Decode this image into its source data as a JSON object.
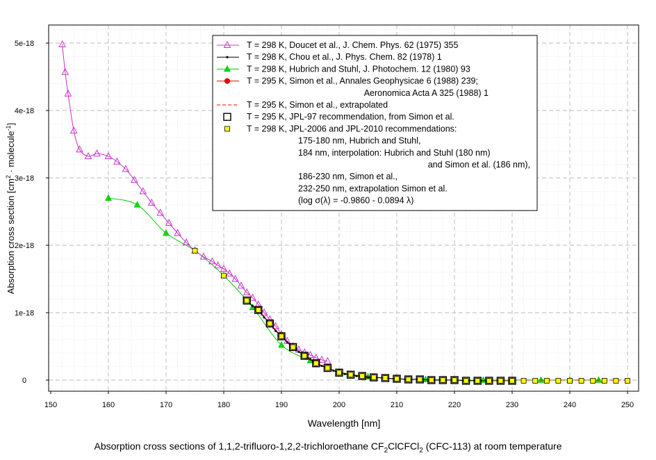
{
  "chart_data": {
    "type": "scatter",
    "title": "",
    "xlabel": "Wavelength [nm]",
    "ylabel_parts": [
      "Absorption cross section [cm",
      "2",
      " · molecule",
      "-1",
      "]"
    ],
    "xlim": [
      150,
      250
    ],
    "ylim": [
      -0.2,
      5.2
    ],
    "y_scale_label": "units of 1e-18",
    "x_ticks": [
      150,
      160,
      170,
      180,
      190,
      200,
      210,
      220,
      230,
      240,
      250
    ],
    "y_ticks": [
      0,
      1,
      2,
      3,
      4,
      5
    ],
    "y_tick_labels": [
      "0",
      "1e-18",
      "2e-18",
      "3e-18",
      "4e-18",
      "5e-18"
    ],
    "grid": true,
    "legend_position": "top-right",
    "legend_lines": [
      {
        "marker": "triangle-open",
        "color": "#cc33cc",
        "text": "T = 298 K, Doucet et al., J. Chem. Phys. 62 (1975) 355"
      },
      {
        "marker": "dot",
        "color": "#000000",
        "text": "T = 298 K, Chou et al., J. Phys. Chem. 82 (1978) 1"
      },
      {
        "marker": "triangle-filled",
        "color": "#00dd00",
        "text": "T = 298 K, Hubrich and Stuhl, J. Photochem. 12 (1980) 93"
      },
      {
        "marker": "circle-red",
        "color": "#ff0000",
        "text": "T = 295 K, Simon et al., Annales Geophysicae 6 (1988) 239;"
      },
      {
        "marker": "none",
        "color": "",
        "text": "Aeronomica Acta A 325 (1988) 1",
        "indent": "far"
      },
      {
        "marker": "dashed",
        "color": "#ff0000",
        "text": "T = 295 K, Simon et al., extrapolated"
      },
      {
        "marker": "square-open",
        "color": "#000000",
        "text": "T = 295 K, JPL-97 recommendation, from Simon et al."
      },
      {
        "marker": "square-yellow",
        "color": "#ffff00",
        "text": "T = 298 K, JPL-2006 and JPL-2010 recommendations:"
      },
      {
        "marker": "none",
        "color": "",
        "text": "175-180 nm, Hubrich and Stuhl,",
        "indent": "mid"
      },
      {
        "marker": "none",
        "color": "",
        "text": "184 nm, interpolation: Hubrich and Stuhl (180 nm)",
        "indent": "mid"
      },
      {
        "marker": "none",
        "color": "",
        "text": "and Simon et al. (186 nm),",
        "indent": "right"
      },
      {
        "marker": "none",
        "color": "",
        "text": "186-230 nm, Simon et al.,",
        "indent": "mid"
      },
      {
        "marker": "none",
        "color": "",
        "text": "232-250 nm, extrapolation Simon et al.",
        "indent": "mid"
      },
      {
        "marker": "none",
        "color": "",
        "text": "(log σ(λ) = -0.9860 - 0.0894 λ)",
        "indent": "mid"
      }
    ],
    "series": [
      {
        "name": "Doucet et al. 1975",
        "style": "magenta-triangle-open",
        "color": "#cc33cc",
        "x": [
          152,
          152.5,
          153,
          154,
          155,
          156.5,
          158,
          160,
          161.5,
          163,
          164.5,
          166,
          167.5,
          169,
          170.5,
          172,
          173.5,
          175,
          176.5,
          178,
          179,
          180,
          181,
          182,
          183,
          184,
          185,
          186,
          187,
          188,
          189,
          190,
          191,
          192,
          193,
          194,
          195,
          196,
          197,
          198
        ],
        "y": [
          4.98,
          4.57,
          4.25,
          3.7,
          3.42,
          3.32,
          3.36,
          3.32,
          3.24,
          3.13,
          2.97,
          2.8,
          2.63,
          2.48,
          2.33,
          2.18,
          2.04,
          1.92,
          1.83,
          1.76,
          1.7,
          1.65,
          1.58,
          1.5,
          1.4,
          1.3,
          1.22,
          1.12,
          1.0,
          0.9,
          0.8,
          0.68,
          0.58,
          0.5,
          0.45,
          0.41,
          0.37,
          0.33,
          0.3,
          0.28
        ]
      },
      {
        "name": "Chou et al. 1978",
        "style": "black-dot",
        "color": "#000000",
        "x": [
          184,
          185,
          186,
          187,
          188,
          189,
          190,
          191,
          192,
          193,
          194,
          195,
          196,
          197,
          198,
          199,
          200,
          201,
          202,
          203,
          204,
          205,
          206,
          208,
          210,
          212,
          214,
          216,
          218,
          220,
          222,
          224,
          226
        ],
        "y": [
          1.18,
          1.1,
          1.04,
          0.93,
          0.84,
          0.73,
          0.65,
          0.56,
          0.48,
          0.42,
          0.36,
          0.31,
          0.25,
          0.21,
          0.18,
          0.14,
          0.11,
          0.09,
          0.08,
          0.06,
          0.05,
          0.04,
          0.04,
          0.03,
          0.02,
          0.01,
          0.01,
          0.0,
          0.0,
          0.0,
          -0.01,
          -0.01,
          -0.01
        ]
      },
      {
        "name": "Hubrich and Stuhl 1980",
        "style": "green-triangle-filled",
        "color": "#00dd00",
        "x": [
          160,
          165,
          170,
          175,
          180,
          185,
          190,
          195,
          200,
          205,
          210,
          215,
          220,
          225,
          230,
          235,
          240,
          245
        ],
        "y": [
          2.7,
          2.6,
          2.18,
          1.92,
          1.55,
          1.08,
          0.52,
          0.29,
          0.12,
          0.05,
          0.02,
          0.01,
          0.0,
          0.0,
          0.0,
          0.0,
          0.0,
          0.0
        ]
      },
      {
        "name": "Simon et al. 1988",
        "style": "red-circle",
        "color": "#ff0000",
        "x": [
          186,
          188,
          190,
          192,
          194,
          196,
          198,
          200,
          202,
          204,
          206,
          208,
          210,
          212,
          214,
          216,
          218,
          220,
          222,
          224,
          226,
          228,
          230
        ],
        "y": [
          1.04,
          0.84,
          0.65,
          0.49,
          0.36,
          0.25,
          0.18,
          0.11,
          0.08,
          0.06,
          0.04,
          0.03,
          0.02,
          0.01,
          0.01,
          0.0,
          0.0,
          0.0,
          -0.01,
          -0.01,
          -0.01,
          -0.01,
          -0.01
        ]
      },
      {
        "name": "Simon et al. extrapolated",
        "style": "red-dashed",
        "color": "#ff0000",
        "x": [
          230,
          235,
          240,
          245,
          250
        ],
        "y": [
          0.0,
          0.0,
          0.0,
          0.0,
          0.0
        ]
      },
      {
        "name": "JPL-97",
        "style": "black-square-open",
        "color": "#000000",
        "x": [
          184,
          186,
          188,
          190,
          192,
          194,
          196,
          198,
          200,
          202,
          204,
          206,
          208,
          210,
          212,
          214,
          216,
          218,
          220,
          222,
          224,
          226,
          228,
          230
        ],
        "y": [
          1.18,
          1.04,
          0.84,
          0.65,
          0.49,
          0.36,
          0.25,
          0.18,
          0.11,
          0.08,
          0.06,
          0.04,
          0.03,
          0.02,
          0.01,
          0.01,
          0.0,
          0.0,
          0.0,
          -0.01,
          -0.01,
          -0.01,
          -0.01,
          -0.01
        ]
      },
      {
        "name": "JPL-2006/2010",
        "style": "yellow-square",
        "color": "#ffff00",
        "x": [
          175,
          180,
          184,
          186,
          188,
          190,
          192,
          194,
          196,
          198,
          200,
          202,
          204,
          206,
          208,
          210,
          212,
          214,
          216,
          218,
          220,
          222,
          224,
          226,
          228,
          230,
          232,
          234,
          236,
          238,
          240,
          242,
          244,
          246,
          248,
          250
        ],
        "y": [
          1.92,
          1.55,
          1.18,
          1.04,
          0.84,
          0.65,
          0.49,
          0.36,
          0.25,
          0.18,
          0.11,
          0.08,
          0.06,
          0.04,
          0.03,
          0.02,
          0.01,
          0.01,
          0.0,
          0.0,
          0.0,
          -0.01,
          -0.01,
          -0.01,
          -0.01,
          -0.01,
          -0.01,
          -0.01,
          -0.01,
          -0.01,
          -0.01,
          -0.01,
          -0.01,
          -0.01,
          -0.01,
          -0.01
        ]
      }
    ]
  },
  "caption": {
    "prefix": "Absorption cross sections of 1,1,2-trifluoro-1,2,2-trichloroethane CF",
    "sub1": "2",
    "mid": "ClCFCl",
    "sub2": "2",
    "suffix": " (CFC-113) at room temperature"
  }
}
